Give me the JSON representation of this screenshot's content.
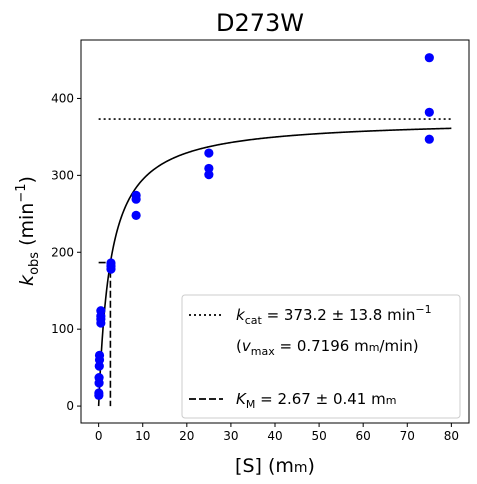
{
  "chart_data": {
    "type": "scatter",
    "title": "D273W",
    "xlabel": {
      "main": "[S] (m",
      "unit_sc": "m",
      "close": ")"
    },
    "ylabel": {
      "k": "k",
      "sub": "obs",
      "rest": " (min",
      "sup": "−1",
      "close": ")"
    },
    "xlim": [
      -4,
      84
    ],
    "ylim": [
      -22,
      476
    ],
    "xticks": [
      0,
      10,
      20,
      30,
      40,
      50,
      60,
      70,
      80
    ],
    "yticks": [
      0,
      100,
      200,
      300,
      400
    ],
    "grid": false,
    "legend_position": "lower right",
    "colors": {
      "points": "#0000ff",
      "lines": "#000000"
    },
    "points": [
      {
        "x": 0.05,
        "y": 14
      },
      {
        "x": 0.05,
        "y": 17
      },
      {
        "x": 0.1,
        "y": 30
      },
      {
        "x": 0.1,
        "y": 37
      },
      {
        "x": 0.15,
        "y": 52
      },
      {
        "x": 0.2,
        "y": 60
      },
      {
        "x": 0.2,
        "y": 66
      },
      {
        "x": 0.5,
        "y": 108
      },
      {
        "x": 0.5,
        "y": 113
      },
      {
        "x": 0.5,
        "y": 117
      },
      {
        "x": 0.5,
        "y": 124
      },
      {
        "x": 2.8,
        "y": 178
      },
      {
        "x": 2.8,
        "y": 182
      },
      {
        "x": 2.8,
        "y": 186
      },
      {
        "x": 8.5,
        "y": 248
      },
      {
        "x": 8.5,
        "y": 269
      },
      {
        "x": 8.5,
        "y": 274
      },
      {
        "x": 25,
        "y": 301
      },
      {
        "x": 25,
        "y": 309
      },
      {
        "x": 25,
        "y": 329
      },
      {
        "x": 75,
        "y": 347
      },
      {
        "x": 75,
        "y": 382
      },
      {
        "x": 75,
        "y": 453
      }
    ],
    "fit": {
      "vmax": 373.2,
      "Km": 2.67,
      "x_range": [
        0,
        80
      ]
    },
    "kcat_line": {
      "y": 373.2,
      "x_range": [
        0,
        80
      ]
    },
    "km_marker": {
      "x": 2.67,
      "y": 186.6,
      "x_from": 0
    },
    "legend": [
      {
        "style": "dotted",
        "prefix": "k",
        "sub": "cat",
        "text": " = 373.2 ± 13.8 min",
        "sup": "−1"
      },
      {
        "style": "none",
        "text_a": "(",
        "prefix": "v",
        "sub": "max",
        "text": " = 0.7196 m",
        "unit_sc": "m",
        "text_b": "/min)"
      },
      {
        "style": "dashed",
        "prefix": "K",
        "sub": "M",
        "text": " = 2.67 ± 0.41 m",
        "unit_sc": "m"
      }
    ]
  }
}
